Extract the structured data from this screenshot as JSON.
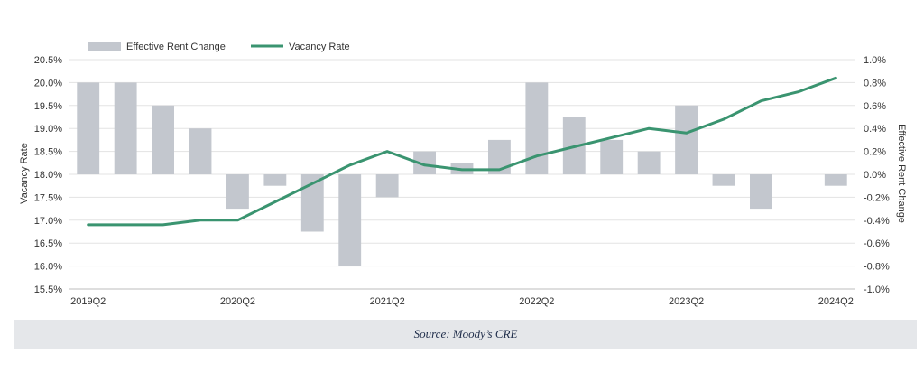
{
  "chart_data": {
    "type": "bar+line",
    "categories": [
      "2019Q2",
      "2019Q3",
      "2019Q4",
      "2020Q1",
      "2020Q2",
      "2020Q3",
      "2020Q4",
      "2021Q1",
      "2021Q2",
      "2021Q3",
      "2021Q4",
      "2022Q1",
      "2022Q2",
      "2022Q3",
      "2022Q4",
      "2023Q1",
      "2023Q2",
      "2023Q3",
      "2023Q4",
      "2024Q1",
      "2024Q2"
    ],
    "x_tick_labels": [
      "2019Q2",
      "2020Q2",
      "2021Q2",
      "2022Q2",
      "2023Q2",
      "2024Q2"
    ],
    "series": [
      {
        "name": "Effective Rent Change",
        "type": "bar",
        "axis": "right",
        "color": "#c3c7ce",
        "values": [
          0.8,
          0.8,
          0.6,
          0.4,
          -0.3,
          -0.1,
          -0.5,
          -0.8,
          -0.2,
          0.2,
          0.1,
          0.3,
          0.8,
          0.5,
          0.3,
          0.2,
          0.6,
          -0.1,
          -0.3,
          0.0,
          -0.1
        ]
      },
      {
        "name": "Vacancy Rate",
        "type": "line",
        "axis": "left",
        "color": "#3a9470",
        "values": [
          16.9,
          16.9,
          16.9,
          17.0,
          17.0,
          17.4,
          17.8,
          18.2,
          18.5,
          18.2,
          18.1,
          18.1,
          18.4,
          18.6,
          18.8,
          19.0,
          18.9,
          19.2,
          19.6,
          19.8,
          20.1
        ]
      }
    ],
    "y_left": {
      "label": "Vacancy Rate",
      "min": 15.5,
      "max": 20.5,
      "step": 0.5,
      "tick_labels": [
        "15.5%",
        "16.0%",
        "16.5%",
        "17.0%",
        "17.5%",
        "18.0%",
        "18.5%",
        "19.0%",
        "19.5%",
        "20.0%",
        "20.5%"
      ]
    },
    "y_right": {
      "label": "Effective Rent Change",
      "min": -1.0,
      "max": 1.0,
      "step": 0.2,
      "tick_labels": [
        "-1.0%",
        "-0.8%",
        "-0.6%",
        "-0.4%",
        "-0.2%",
        "0.0%",
        "0.2%",
        "0.4%",
        "0.6%",
        "0.8%",
        "1.0%"
      ]
    },
    "grid": true,
    "legend_position": "top-left"
  },
  "source": "Source: Moody’s CRE"
}
